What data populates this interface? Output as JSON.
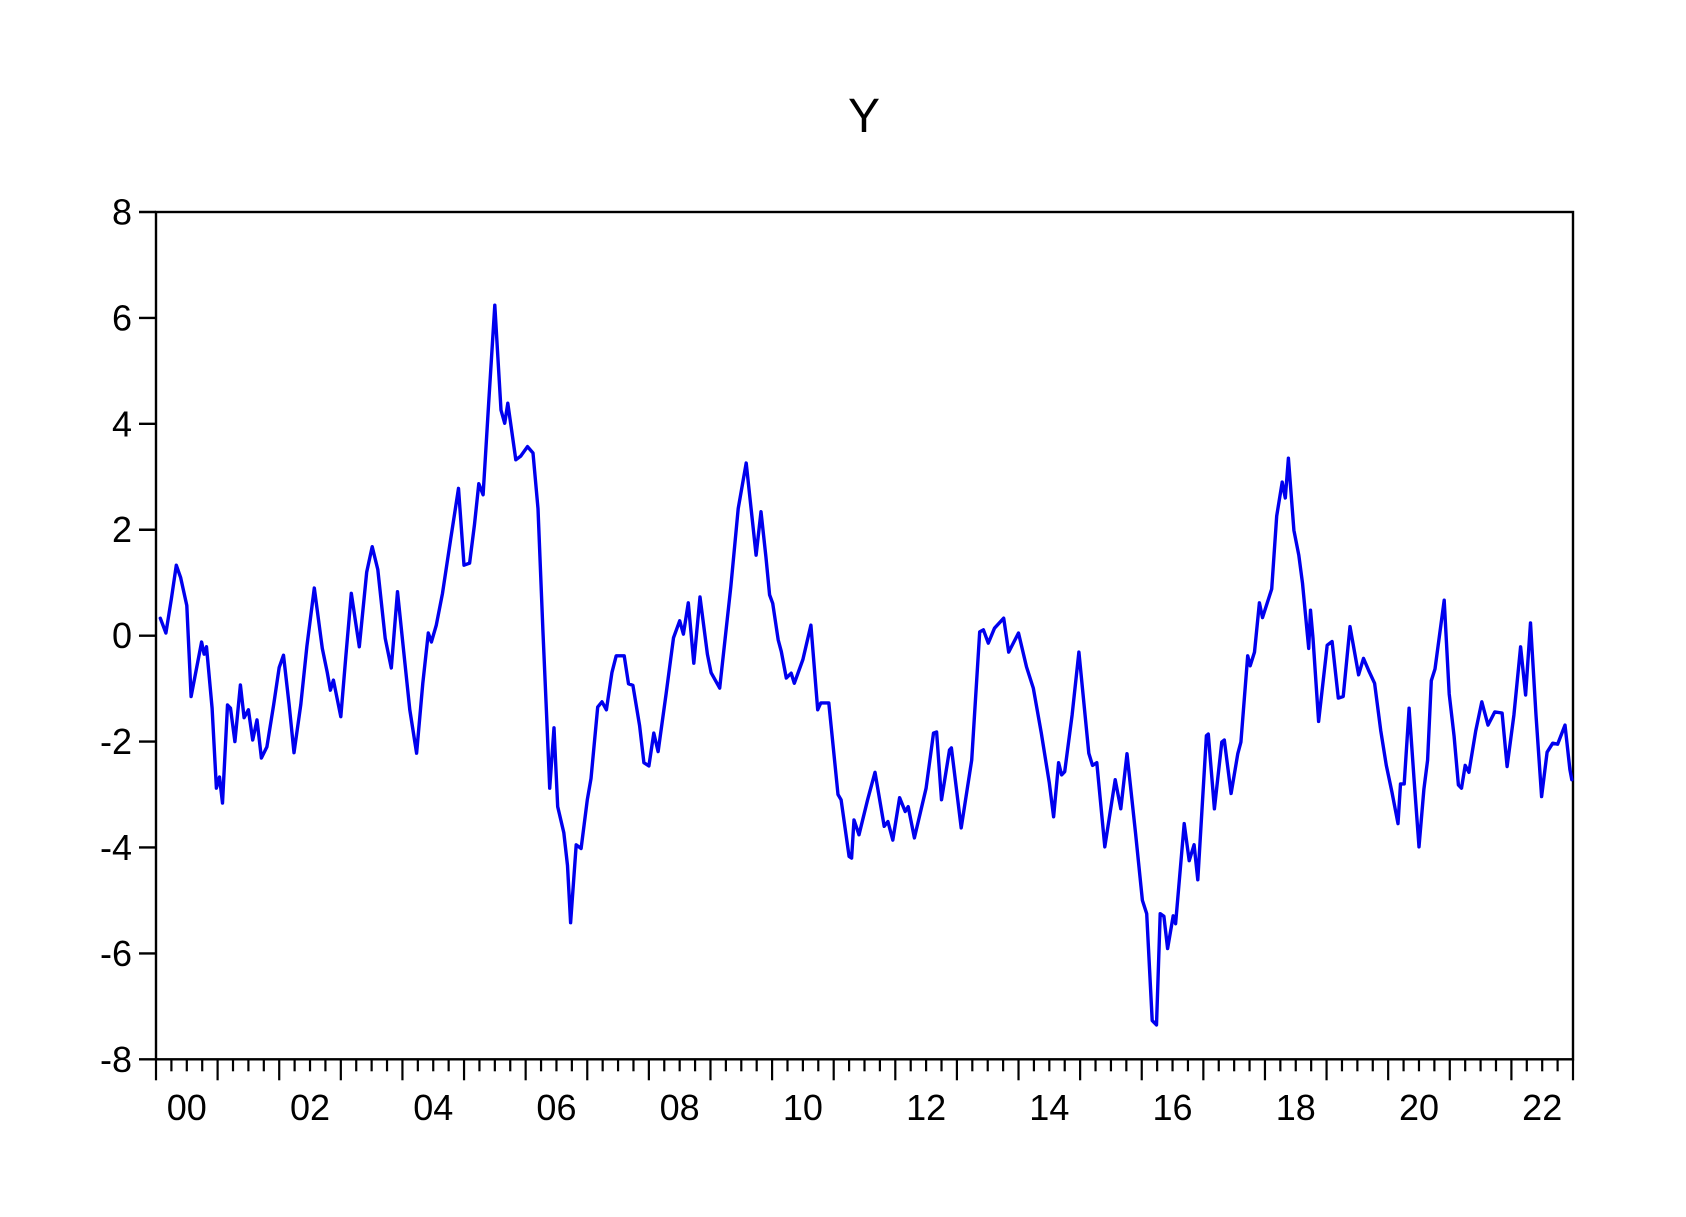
{
  "page": {
    "background": "#ffffff"
  },
  "chart_data": {
    "type": "line",
    "title": "Y",
    "grid": false,
    "legend": false,
    "axis_color": "#000000",
    "x_axis": {
      "range": [
        2000.0,
        2023.0
      ],
      "minor_tick_step_years": 0.25,
      "major_tick_step_years": 1,
      "labels": [
        {
          "text": "00",
          "year": 2000.5
        },
        {
          "text": "02",
          "year": 2002.5
        },
        {
          "text": "04",
          "year": 2004.5
        },
        {
          "text": "06",
          "year": 2006.5
        },
        {
          "text": "08",
          "year": 2008.5
        },
        {
          "text": "10",
          "year": 2010.5
        },
        {
          "text": "12",
          "year": 2012.5
        },
        {
          "text": "14",
          "year": 2014.5
        },
        {
          "text": "16",
          "year": 2016.5
        },
        {
          "text": "18",
          "year": 2018.5
        },
        {
          "text": "20",
          "year": 2020.5
        },
        {
          "text": "22",
          "year": 2022.5
        }
      ]
    },
    "y_axis": {
      "range": [
        -8,
        8
      ],
      "ticks": [
        8,
        6,
        4,
        2,
        0,
        -2,
        -4,
        -6,
        -8
      ]
    },
    "series": [
      {
        "name": "Y",
        "color": "#0000EE",
        "points": [
          [
            2000.07,
            0.33
          ],
          [
            2000.16,
            0.05
          ],
          [
            2000.25,
            0.7
          ],
          [
            2000.33,
            1.33
          ],
          [
            2000.4,
            1.1
          ],
          [
            2000.5,
            0.57
          ],
          [
            2000.57,
            -1.15
          ],
          [
            2000.66,
            -0.6
          ],
          [
            2000.74,
            -0.12
          ],
          [
            2000.78,
            -0.35
          ],
          [
            2000.82,
            -0.21
          ],
          [
            2000.91,
            -1.37
          ],
          [
            2000.98,
            -2.88
          ],
          [
            2001.03,
            -2.67
          ],
          [
            2001.08,
            -3.16
          ],
          [
            2001.16,
            -1.31
          ],
          [
            2001.21,
            -1.37
          ],
          [
            2001.28,
            -2.0
          ],
          [
            2001.37,
            -0.93
          ],
          [
            2001.43,
            -1.55
          ],
          [
            2001.5,
            -1.4
          ],
          [
            2001.57,
            -1.97
          ],
          [
            2001.64,
            -1.59
          ],
          [
            2001.71,
            -2.31
          ],
          [
            2001.8,
            -2.1
          ],
          [
            2001.91,
            -1.3
          ],
          [
            2002.0,
            -0.6
          ],
          [
            2002.07,
            -0.37
          ],
          [
            2002.16,
            -1.3
          ],
          [
            2002.24,
            -2.21
          ],
          [
            2002.35,
            -1.3
          ],
          [
            2002.45,
            -0.2
          ],
          [
            2002.57,
            0.9
          ],
          [
            2002.66,
            0.1
          ],
          [
            2002.7,
            -0.24
          ],
          [
            2002.78,
            -0.7
          ],
          [
            2002.83,
            -1.03
          ],
          [
            2002.88,
            -0.84
          ],
          [
            2003.0,
            -1.53
          ],
          [
            2003.08,
            -0.4
          ],
          [
            2003.17,
            0.8
          ],
          [
            2003.3,
            -0.21
          ],
          [
            2003.42,
            1.2
          ],
          [
            2003.51,
            1.68
          ],
          [
            2003.6,
            1.25
          ],
          [
            2003.72,
            -0.05
          ],
          [
            2003.82,
            -0.61
          ],
          [
            2003.92,
            0.83
          ],
          [
            2004.02,
            -0.3
          ],
          [
            2004.12,
            -1.4
          ],
          [
            2004.23,
            -2.22
          ],
          [
            2004.33,
            -0.9
          ],
          [
            2004.42,
            0.05
          ],
          [
            2004.47,
            -0.12
          ],
          [
            2004.55,
            0.2
          ],
          [
            2004.65,
            0.8
          ],
          [
            2004.78,
            1.8
          ],
          [
            2004.91,
            2.78
          ],
          [
            2005.0,
            1.33
          ],
          [
            2005.09,
            1.37
          ],
          [
            2005.17,
            2.1
          ],
          [
            2005.24,
            2.87
          ],
          [
            2005.31,
            2.66
          ],
          [
            2005.4,
            4.4
          ],
          [
            2005.5,
            6.24
          ],
          [
            2005.6,
            4.26
          ],
          [
            2005.66,
            4.01
          ],
          [
            2005.71,
            4.39
          ],
          [
            2005.84,
            3.32
          ],
          [
            2005.92,
            3.39
          ],
          [
            2006.03,
            3.57
          ],
          [
            2006.12,
            3.45
          ],
          [
            2006.2,
            2.4
          ],
          [
            2006.28,
            0.1
          ],
          [
            2006.34,
            -1.5
          ],
          [
            2006.39,
            -2.88
          ],
          [
            2006.46,
            -1.74
          ],
          [
            2006.52,
            -3.23
          ],
          [
            2006.62,
            -3.72
          ],
          [
            2006.68,
            -4.34
          ],
          [
            2006.73,
            -5.42
          ],
          [
            2006.82,
            -3.95
          ],
          [
            2006.9,
            -4.02
          ],
          [
            2007.0,
            -3.1
          ],
          [
            2007.06,
            -2.7
          ],
          [
            2007.17,
            -1.35
          ],
          [
            2007.24,
            -1.25
          ],
          [
            2007.31,
            -1.4
          ],
          [
            2007.4,
            -0.7
          ],
          [
            2007.47,
            -0.38
          ],
          [
            2007.6,
            -0.38
          ],
          [
            2007.67,
            -0.91
          ],
          [
            2007.74,
            -0.94
          ],
          [
            2007.85,
            -1.7
          ],
          [
            2007.92,
            -2.4
          ],
          [
            2008.0,
            -2.46
          ],
          [
            2008.08,
            -1.84
          ],
          [
            2008.15,
            -2.19
          ],
          [
            2008.28,
            -1.1
          ],
          [
            2008.4,
            -0.04
          ],
          [
            2008.5,
            0.28
          ],
          [
            2008.56,
            0.03
          ],
          [
            2008.64,
            0.62
          ],
          [
            2008.73,
            -0.52
          ],
          [
            2008.83,
            0.73
          ],
          [
            2008.95,
            -0.35
          ],
          [
            2009.01,
            -0.7
          ],
          [
            2009.15,
            -0.99
          ],
          [
            2009.33,
            0.92
          ],
          [
            2009.45,
            2.4
          ],
          [
            2009.58,
            3.26
          ],
          [
            2009.74,
            1.52
          ],
          [
            2009.82,
            2.34
          ],
          [
            2009.9,
            1.49
          ],
          [
            2009.96,
            0.77
          ],
          [
            2010.01,
            0.61
          ],
          [
            2010.1,
            -0.08
          ],
          [
            2010.15,
            -0.3
          ],
          [
            2010.23,
            -0.8
          ],
          [
            2010.31,
            -0.71
          ],
          [
            2010.36,
            -0.9
          ],
          [
            2010.5,
            -0.45
          ],
          [
            2010.63,
            0.2
          ],
          [
            2010.74,
            -1.4
          ],
          [
            2010.79,
            -1.27
          ],
          [
            2010.92,
            -1.27
          ],
          [
            2011.07,
            -3.0
          ],
          [
            2011.12,
            -3.1
          ],
          [
            2011.25,
            -4.17
          ],
          [
            2011.29,
            -4.2
          ],
          [
            2011.33,
            -3.48
          ],
          [
            2011.41,
            -3.76
          ],
          [
            2011.55,
            -3.1
          ],
          [
            2011.67,
            -2.58
          ],
          [
            2011.82,
            -3.6
          ],
          [
            2011.88,
            -3.51
          ],
          [
            2011.96,
            -3.86
          ],
          [
            2012.07,
            -3.06
          ],
          [
            2012.16,
            -3.32
          ],
          [
            2012.21,
            -3.23
          ],
          [
            2012.31,
            -3.82
          ],
          [
            2012.5,
            -2.88
          ],
          [
            2012.62,
            -1.84
          ],
          [
            2012.67,
            -1.82
          ],
          [
            2012.75,
            -3.1
          ],
          [
            2012.88,
            -2.16
          ],
          [
            2012.91,
            -2.12
          ],
          [
            2013.07,
            -3.63
          ],
          [
            2013.24,
            -2.35
          ],
          [
            2013.37,
            0.07
          ],
          [
            2013.43,
            0.11
          ],
          [
            2013.51,
            -0.14
          ],
          [
            2013.61,
            0.14
          ],
          [
            2013.76,
            0.33
          ],
          [
            2013.84,
            -0.31
          ],
          [
            2014.0,
            0.05
          ],
          [
            2014.13,
            -0.59
          ],
          [
            2014.24,
            -0.99
          ],
          [
            2014.37,
            -1.84
          ],
          [
            2014.5,
            -2.78
          ],
          [
            2014.57,
            -3.42
          ],
          [
            2014.65,
            -2.4
          ],
          [
            2014.7,
            -2.63
          ],
          [
            2014.75,
            -2.57
          ],
          [
            2014.87,
            -1.5
          ],
          [
            2014.98,
            -0.31
          ],
          [
            2015.14,
            -2.22
          ],
          [
            2015.2,
            -2.45
          ],
          [
            2015.27,
            -2.4
          ],
          [
            2015.4,
            -3.99
          ],
          [
            2015.57,
            -2.72
          ],
          [
            2015.66,
            -3.27
          ],
          [
            2015.76,
            -2.23
          ],
          [
            2015.9,
            -3.74
          ],
          [
            2016.01,
            -5.0
          ],
          [
            2016.08,
            -5.25
          ],
          [
            2016.17,
            -7.27
          ],
          [
            2016.24,
            -7.35
          ],
          [
            2016.3,
            -5.25
          ],
          [
            2016.36,
            -5.3
          ],
          [
            2016.42,
            -5.91
          ],
          [
            2016.51,
            -5.29
          ],
          [
            2016.55,
            -5.44
          ],
          [
            2016.69,
            -3.55
          ],
          [
            2016.77,
            -4.25
          ],
          [
            2016.85,
            -3.95
          ],
          [
            2016.91,
            -4.61
          ],
          [
            2017.05,
            -1.89
          ],
          [
            2017.08,
            -1.86
          ],
          [
            2017.18,
            -3.27
          ],
          [
            2017.3,
            -2.01
          ],
          [
            2017.34,
            -1.97
          ],
          [
            2017.45,
            -2.98
          ],
          [
            2017.56,
            -2.23
          ],
          [
            2017.61,
            -2.01
          ],
          [
            2017.72,
            -0.38
          ],
          [
            2017.76,
            -0.57
          ],
          [
            2017.83,
            -0.31
          ],
          [
            2017.91,
            0.62
          ],
          [
            2017.96,
            0.34
          ],
          [
            2018.11,
            0.88
          ],
          [
            2018.19,
            2.26
          ],
          [
            2018.28,
            2.9
          ],
          [
            2018.33,
            2.6
          ],
          [
            2018.38,
            3.35
          ],
          [
            2018.47,
            1.99
          ],
          [
            2018.55,
            1.52
          ],
          [
            2018.61,
            0.99
          ],
          [
            2018.71,
            -0.24
          ],
          [
            2018.74,
            0.48
          ],
          [
            2018.78,
            -0.05
          ],
          [
            2018.87,
            -1.62
          ],
          [
            2019.01,
            -0.18
          ],
          [
            2019.09,
            -0.11
          ],
          [
            2019.19,
            -1.18
          ],
          [
            2019.27,
            -1.15
          ],
          [
            2019.38,
            0.17
          ],
          [
            2019.52,
            -0.74
          ],
          [
            2019.6,
            -0.43
          ],
          [
            2019.68,
            -0.65
          ],
          [
            2019.78,
            -0.9
          ],
          [
            2019.88,
            -1.8
          ],
          [
            2019.97,
            -2.45
          ],
          [
            2020.06,
            -2.95
          ],
          [
            2020.16,
            -3.55
          ],
          [
            2020.2,
            -2.8
          ],
          [
            2020.26,
            -2.8
          ],
          [
            2020.34,
            -1.37
          ],
          [
            2020.42,
            -2.7
          ],
          [
            2020.5,
            -3.99
          ],
          [
            2020.58,
            -2.9
          ],
          [
            2020.64,
            -2.35
          ],
          [
            2020.7,
            -0.85
          ],
          [
            2020.76,
            -0.63
          ],
          [
            2020.91,
            0.67
          ],
          [
            2020.99,
            -1.1
          ],
          [
            2021.07,
            -1.9
          ],
          [
            2021.14,
            -2.82
          ],
          [
            2021.19,
            -2.88
          ],
          [
            2021.25,
            -2.45
          ],
          [
            2021.31,
            -2.58
          ],
          [
            2021.42,
            -1.8
          ],
          [
            2021.52,
            -1.25
          ],
          [
            2021.62,
            -1.69
          ],
          [
            2021.73,
            -1.44
          ],
          [
            2021.85,
            -1.46
          ],
          [
            2021.93,
            -2.47
          ],
          [
            2022.04,
            -1.5
          ],
          [
            2022.15,
            -0.21
          ],
          [
            2022.23,
            -1.12
          ],
          [
            2022.31,
            0.24
          ],
          [
            2022.4,
            -1.5
          ],
          [
            2022.49,
            -3.04
          ],
          [
            2022.58,
            -2.2
          ],
          [
            2022.67,
            -2.03
          ],
          [
            2022.75,
            -2.05
          ],
          [
            2022.87,
            -1.69
          ],
          [
            2022.95,
            -2.53
          ],
          [
            2022.98,
            -2.72
          ]
        ]
      }
    ]
  }
}
